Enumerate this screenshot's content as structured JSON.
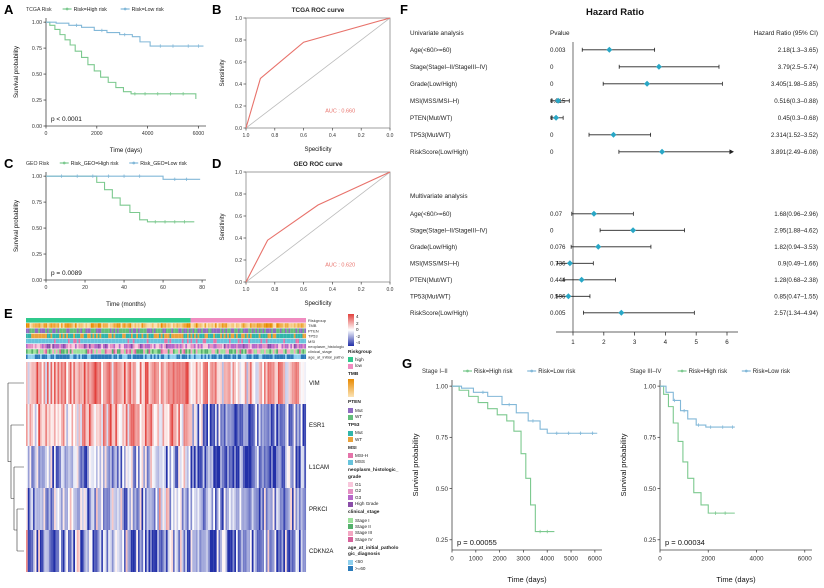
{
  "figure": {
    "letters": {
      "a": "A",
      "b": "B",
      "c": "C",
      "d": "D",
      "e": "E",
      "f": "F",
      "g": "G"
    }
  },
  "chart_data": [
    {
      "id": "km_tcga",
      "type": "line",
      "subtype": "kaplan-meier",
      "legend_title": "TCGA  Risk",
      "pvalue": "p < 0.0001",
      "xlabel": "Time (days)",
      "ylabel": "Survival probability",
      "xticks": [
        0,
        2000,
        4000,
        6000
      ],
      "yticks": [
        0,
        0.25,
        0.5,
        0.75,
        1.0
      ],
      "xlim": [
        0,
        6300
      ],
      "ylim": [
        0,
        1.04
      ],
      "series": [
        {
          "name": "Risk=High risk",
          "color": "#7CC98F",
          "points": [
            [
              0,
              1.0
            ],
            [
              150,
              0.97
            ],
            [
              350,
              0.93
            ],
            [
              550,
              0.88
            ],
            [
              750,
              0.83
            ],
            [
              950,
              0.78
            ],
            [
              1150,
              0.72
            ],
            [
              1400,
              0.66
            ],
            [
              1650,
              0.59
            ],
            [
              1900,
              0.53
            ],
            [
              2150,
              0.47
            ],
            [
              2450,
              0.42
            ],
            [
              2750,
              0.37
            ],
            [
              3050,
              0.33
            ],
            [
              3350,
              0.31
            ],
            [
              5700,
              0.31
            ],
            [
              5900,
              0.26
            ]
          ],
          "censors": [
            3500,
            3900,
            4400,
            4900,
            5400
          ]
        },
        {
          "name": "Risk=Low risk",
          "color": "#82B8D8",
          "points": [
            [
              0,
              1.0
            ],
            [
              400,
              0.99
            ],
            [
              900,
              0.97
            ],
            [
              1400,
              0.95
            ],
            [
              1900,
              0.92
            ],
            [
              2400,
              0.9
            ],
            [
              2900,
              0.88
            ],
            [
              3400,
              0.86
            ],
            [
              3700,
              0.81
            ],
            [
              4100,
              0.77
            ],
            [
              6200,
              0.77
            ]
          ],
          "censors": [
            1200,
            2200,
            3100,
            4500,
            5000,
            5600,
            6000
          ]
        }
      ]
    },
    {
      "id": "roc_tcga",
      "type": "line",
      "subtype": "roc",
      "title": "TCGA ROC curve",
      "color": "#E8726B",
      "auc_label": "AUC : 0.660",
      "xlabel": "Specificity",
      "ylabel": "Sensitivity",
      "xticks": [
        1.0,
        0.8,
        0.6,
        0.4,
        0.2,
        0.0
      ],
      "yticks": [
        0.0,
        0.2,
        0.4,
        0.6,
        0.8,
        1.0
      ],
      "points": [
        [
          1.0,
          0.0
        ],
        [
          0.9,
          0.45
        ],
        [
          0.6,
          0.78
        ],
        [
          0.0,
          1.0
        ]
      ]
    },
    {
      "id": "km_geo",
      "type": "line",
      "subtype": "kaplan-meier",
      "legend_title": "GEO  Risk",
      "pvalue": "p = 0.0089",
      "xlabel": "Time (months)",
      "ylabel": "Survival probability",
      "xticks": [
        0,
        20,
        40,
        60,
        80
      ],
      "yticks": [
        0,
        0.25,
        0.5,
        0.75,
        1.0
      ],
      "xlim": [
        0,
        82
      ],
      "ylim": [
        0,
        1.04
      ],
      "series": [
        {
          "name": "Risk_GEO=High risk",
          "color": "#7CC98F",
          "points": [
            [
              0,
              1.0
            ],
            [
              23,
              1.0
            ],
            [
              26,
              0.94
            ],
            [
              30,
              0.87
            ],
            [
              34,
              0.79
            ],
            [
              38,
              0.72
            ],
            [
              43,
              0.65
            ],
            [
              48,
              0.58
            ],
            [
              52,
              0.56
            ],
            [
              76,
              0.56
            ]
          ],
          "censors": [
            56,
            61,
            66,
            71
          ]
        },
        {
          "name": "Risk_GEO=Low risk",
          "color": "#82B8D8",
          "points": [
            [
              0,
              1.0
            ],
            [
              58,
              1.0
            ],
            [
              60,
              0.97
            ],
            [
              79,
              0.97
            ]
          ],
          "censors": [
            8,
            16,
            24,
            32,
            40,
            48,
            66,
            72
          ]
        }
      ]
    },
    {
      "id": "roc_geo",
      "type": "line",
      "subtype": "roc",
      "title": "GEO ROC curve",
      "color": "#E8726B",
      "auc_label": "AUC : 0.620",
      "xlabel": "Specificity",
      "ylabel": "Sensitivity",
      "xticks": [
        1.0,
        0.8,
        0.6,
        0.4,
        0.2,
        0.0
      ],
      "yticks": [
        0.0,
        0.2,
        0.4,
        0.6,
        0.8,
        1.0
      ],
      "points": [
        [
          1.0,
          0.0
        ],
        [
          0.85,
          0.38
        ],
        [
          0.5,
          0.7
        ],
        [
          0.25,
          0.85
        ],
        [
          0.0,
          1.0
        ]
      ]
    },
    {
      "id": "heatmap_geo_genes",
      "type": "heatmap",
      "columns": 160,
      "split_col": 94,
      "genes": [
        {
          "name": "VIM",
          "left_mean": 2.3,
          "right_mean": 1.5,
          "sd": 1.3
        },
        {
          "name": "ESR1",
          "left_mean": 1.4,
          "right_mean": -2.0,
          "sd": 1.4
        },
        {
          "name": "L1CAM",
          "left_mean": -1.2,
          "right_mean": -2.8,
          "sd": 1.6
        },
        {
          "name": "PRKCI",
          "left_mean": -1.0,
          "right_mean": -1.6,
          "sd": 1.4
        },
        {
          "name": "CDKN2A",
          "left_mean": -1.8,
          "right_mean": -2.0,
          "sd": 1.6
        }
      ],
      "scale": {
        "min": -4,
        "max": 4,
        "neg_color": "#2230A8",
        "mid_color": "#FFFFFF",
        "pos_color": "#E2413D",
        "ticks": [
          "4",
          "2",
          "0",
          "-2",
          "-4"
        ]
      },
      "annotations": [
        {
          "name": "Riskgroup",
          "type": "split",
          "categories": [
            {
              "label": "high",
              "color": "#2FC98C"
            },
            {
              "label": "low",
              "color": "#F08CC0"
            }
          ]
        },
        {
          "name": "TMB",
          "type": "gradient",
          "colors": [
            "#E88A00",
            "#FBE3B6"
          ]
        },
        {
          "name": "PTEN",
          "type": "cat",
          "categories": [
            {
              "label": "Mut",
              "color": "#8E6BC1",
              "w": 5
            },
            {
              "label": "WT",
              "color": "#63BE7B",
              "w": 5
            }
          ]
        },
        {
          "name": "TP53",
          "type": "cat",
          "categories": [
            {
              "label": "Mut",
              "color": "#31B5AA",
              "w": 6
            },
            {
              "label": "WT",
              "color": "#E9A23B",
              "w": 4
            }
          ]
        },
        {
          "name": "MSI",
          "type": "cat",
          "categories": [
            {
              "label": "MSI-H",
              "color": "#E573A9",
              "w": 2
            },
            {
              "label": "MSS",
              "color": "#67C3DC",
              "w": 8
            }
          ]
        },
        {
          "name": "neoplasm_histologic_grade",
          "type": "cat",
          "categories": [
            {
              "label": "G1",
              "color": "#F9C7DC",
              "w": 2
            },
            {
              "label": "G2",
              "color": "#E48FC3",
              "w": 3
            },
            {
              "label": "G3",
              "color": "#B668C9",
              "w": 4
            },
            {
              "label": "High Grade",
              "color": "#8A4DA8",
              "w": 1
            }
          ]
        },
        {
          "name": "clinical_stage",
          "type": "cat",
          "categories": [
            {
              "label": "Stage I",
              "color": "#9BE19B",
              "w": 4
            },
            {
              "label": "Stage II",
              "color": "#54B06B",
              "w": 2
            },
            {
              "label": "Stage III",
              "color": "#F4A7C3",
              "w": 3
            },
            {
              "label": "Stage IV",
              "color": "#D6619B",
              "w": 1
            }
          ]
        },
        {
          "name": "age_at_initial_pathologic_diagnosis",
          "type": "cat",
          "categories": [
            {
              "label": "<60",
              "color": "#8FD0EE",
              "w": 4
            },
            {
              "label": ">=60",
              "color": "#2B7BBA",
              "w": 6
            }
          ]
        }
      ]
    },
    {
      "id": "forest_hazard_ratio",
      "type": "forest",
      "title": "Hazard Ratio",
      "col_headers": {
        "left": "Univariate analysis",
        "pvalue": "Pvalue",
        "right": "Hazard Ratio (95% CI)"
      },
      "section2": "Multivariate analysis",
      "marker_color": "#29A7C6",
      "axis": {
        "ticks": [
          1,
          2,
          3,
          4,
          5,
          6
        ]
      },
      "univariate": [
        {
          "label": "Age(<60/>=60)",
          "pvalue": "0.003",
          "hr": 2.18,
          "lo": 1.3,
          "hi": 3.65,
          "text": "2.18(1.3–3.65)"
        },
        {
          "label": "Stage(StageI–II/StageIII–IV)",
          "pvalue": "0",
          "hr": 3.79,
          "lo": 2.5,
          "hi": 5.74,
          "text": "3.79(2.5–5.74)"
        },
        {
          "label": "Grade(Low/High)",
          "pvalue": "0",
          "hr": 3.405,
          "lo": 1.98,
          "hi": 5.85,
          "text": "3.405(1.98–5.85)"
        },
        {
          "label": "MSI(MSS/MSI–H)",
          "pvalue": "0.015",
          "hr": 0.516,
          "lo": 0.3,
          "hi": 0.88,
          "text": "0.516(0.3–0.88)"
        },
        {
          "label": "PTEN(Mut/WT)",
          "pvalue": "0",
          "hr": 0.45,
          "lo": 0.3,
          "hi": 0.68,
          "text": "0.45(0.3–0.68)"
        },
        {
          "label": "TP53(Mut/WT)",
          "pvalue": "0",
          "hr": 2.314,
          "lo": 1.52,
          "hi": 3.52,
          "text": "2.314(1.52–3.52)"
        },
        {
          "label": "RiskScore(Low/High)",
          "pvalue": "0",
          "hr": 3.891,
          "lo": 2.49,
          "hi": 6.08,
          "text": "3.891(2.49–6.08)",
          "arrow": true
        }
      ],
      "multivariate": [
        {
          "label": "Age(<60/>=60)",
          "pvalue": "0.07",
          "hr": 1.68,
          "lo": 0.96,
          "hi": 2.96,
          "text": "1.68(0.96–2.96)"
        },
        {
          "label": "Stage(StageI–II/StageIII–IV)",
          "pvalue": "0",
          "hr": 2.95,
          "lo": 1.88,
          "hi": 4.62,
          "text": "2.95(1.88–4.62)"
        },
        {
          "label": "Grade(Low/High)",
          "pvalue": "0.076",
          "hr": 1.82,
          "lo": 0.94,
          "hi": 3.53,
          "text": "1.82(0.94–3.53)"
        },
        {
          "label": "MSI(MSS/MSI–H)",
          "pvalue": "0.736",
          "hr": 0.9,
          "lo": 0.49,
          "hi": 1.66,
          "text": "0.9(0.49–1.66)"
        },
        {
          "label": "PTEN(Mut/WT)",
          "pvalue": "0.444",
          "hr": 1.28,
          "lo": 0.68,
          "hi": 2.38,
          "text": "1.28(0.68–2.38)"
        },
        {
          "label": "TP53(Mut/WT)",
          "pvalue": "0.596",
          "hr": 0.85,
          "lo": 0.47,
          "hi": 1.55,
          "text": "0.85(0.47–1.55)"
        },
        {
          "label": "RiskScore(Low/High)",
          "pvalue": "0.005",
          "hr": 2.57,
          "lo": 1.34,
          "hi": 4.94,
          "text": "2.57(1.34–4.94)"
        }
      ]
    },
    {
      "id": "km_stage_1_2",
      "type": "line",
      "subtype": "kaplan-meier",
      "legend_title": "Stage I–II",
      "pvalue": "p = 0.00055",
      "xlabel": "Time (days)",
      "ylabel": "Survival probability",
      "xticks": [
        0,
        1000,
        2000,
        3000,
        4000,
        5000,
        6000
      ],
      "yticks": [
        0.25,
        0.5,
        0.75,
        1.0
      ],
      "xlim": [
        0,
        6300
      ],
      "ylim": [
        0.2,
        1.03
      ],
      "series": [
        {
          "name": "Risk=High risk",
          "color": "#7CC98F",
          "points": [
            [
              0,
              1.0
            ],
            [
              300,
              0.98
            ],
            [
              700,
              0.95
            ],
            [
              1100,
              0.92
            ],
            [
              1500,
              0.89
            ],
            [
              1900,
              0.86
            ],
            [
              2300,
              0.83
            ],
            [
              2600,
              0.78
            ],
            [
              2900,
              0.67
            ],
            [
              3100,
              0.55
            ],
            [
              3300,
              0.42
            ],
            [
              3500,
              0.29
            ],
            [
              4300,
              0.29
            ]
          ],
          "censors": [
            3700,
            4000
          ]
        },
        {
          "name": "Risk=Low risk",
          "color": "#82B8D8",
          "points": [
            [
              0,
              1.0
            ],
            [
              400,
              0.99
            ],
            [
              900,
              0.97
            ],
            [
              1500,
              0.95
            ],
            [
              2100,
              0.91
            ],
            [
              2700,
              0.87
            ],
            [
              3200,
              0.83
            ],
            [
              3700,
              0.79
            ],
            [
              4000,
              0.77
            ],
            [
              6100,
              0.77
            ]
          ],
          "censors": [
            1300,
            2400,
            3400,
            4400,
            4900,
            5400,
            5900
          ]
        }
      ]
    },
    {
      "id": "km_stage_3_4",
      "type": "line",
      "subtype": "kaplan-meier",
      "legend_title": "Stage III–IV",
      "pvalue": "p = 0.00034",
      "xlabel": "Time (days)",
      "ylabel": "Survival probability",
      "xticks": [
        0,
        2000,
        4000,
        6000
      ],
      "yticks": [
        0.25,
        0.5,
        0.75,
        1.0
      ],
      "xlim": [
        0,
        6300
      ],
      "ylim": [
        0.2,
        1.03
      ],
      "series": [
        {
          "name": "Risk=High risk",
          "color": "#7CC98F",
          "points": [
            [
              0,
              1.0
            ],
            [
              150,
              0.96
            ],
            [
              350,
              0.9
            ],
            [
              550,
              0.82
            ],
            [
              750,
              0.73
            ],
            [
              950,
              0.63
            ],
            [
              1150,
              0.55
            ],
            [
              1400,
              0.48
            ],
            [
              1700,
              0.42
            ],
            [
              2000,
              0.38
            ],
            [
              3100,
              0.38
            ]
          ],
          "censors": [
            2300,
            2700
          ]
        },
        {
          "name": "Risk=Low risk",
          "color": "#82B8D8",
          "points": [
            [
              0,
              1.0
            ],
            [
              250,
              0.97
            ],
            [
              550,
              0.93
            ],
            [
              850,
              0.88
            ],
            [
              1150,
              0.84
            ],
            [
              1500,
              0.81
            ],
            [
              1900,
              0.8
            ],
            [
              3100,
              0.8
            ]
          ],
          "censors": [
            600,
            1000,
            1600,
            2100,
            2600,
            3000
          ]
        }
      ]
    }
  ]
}
